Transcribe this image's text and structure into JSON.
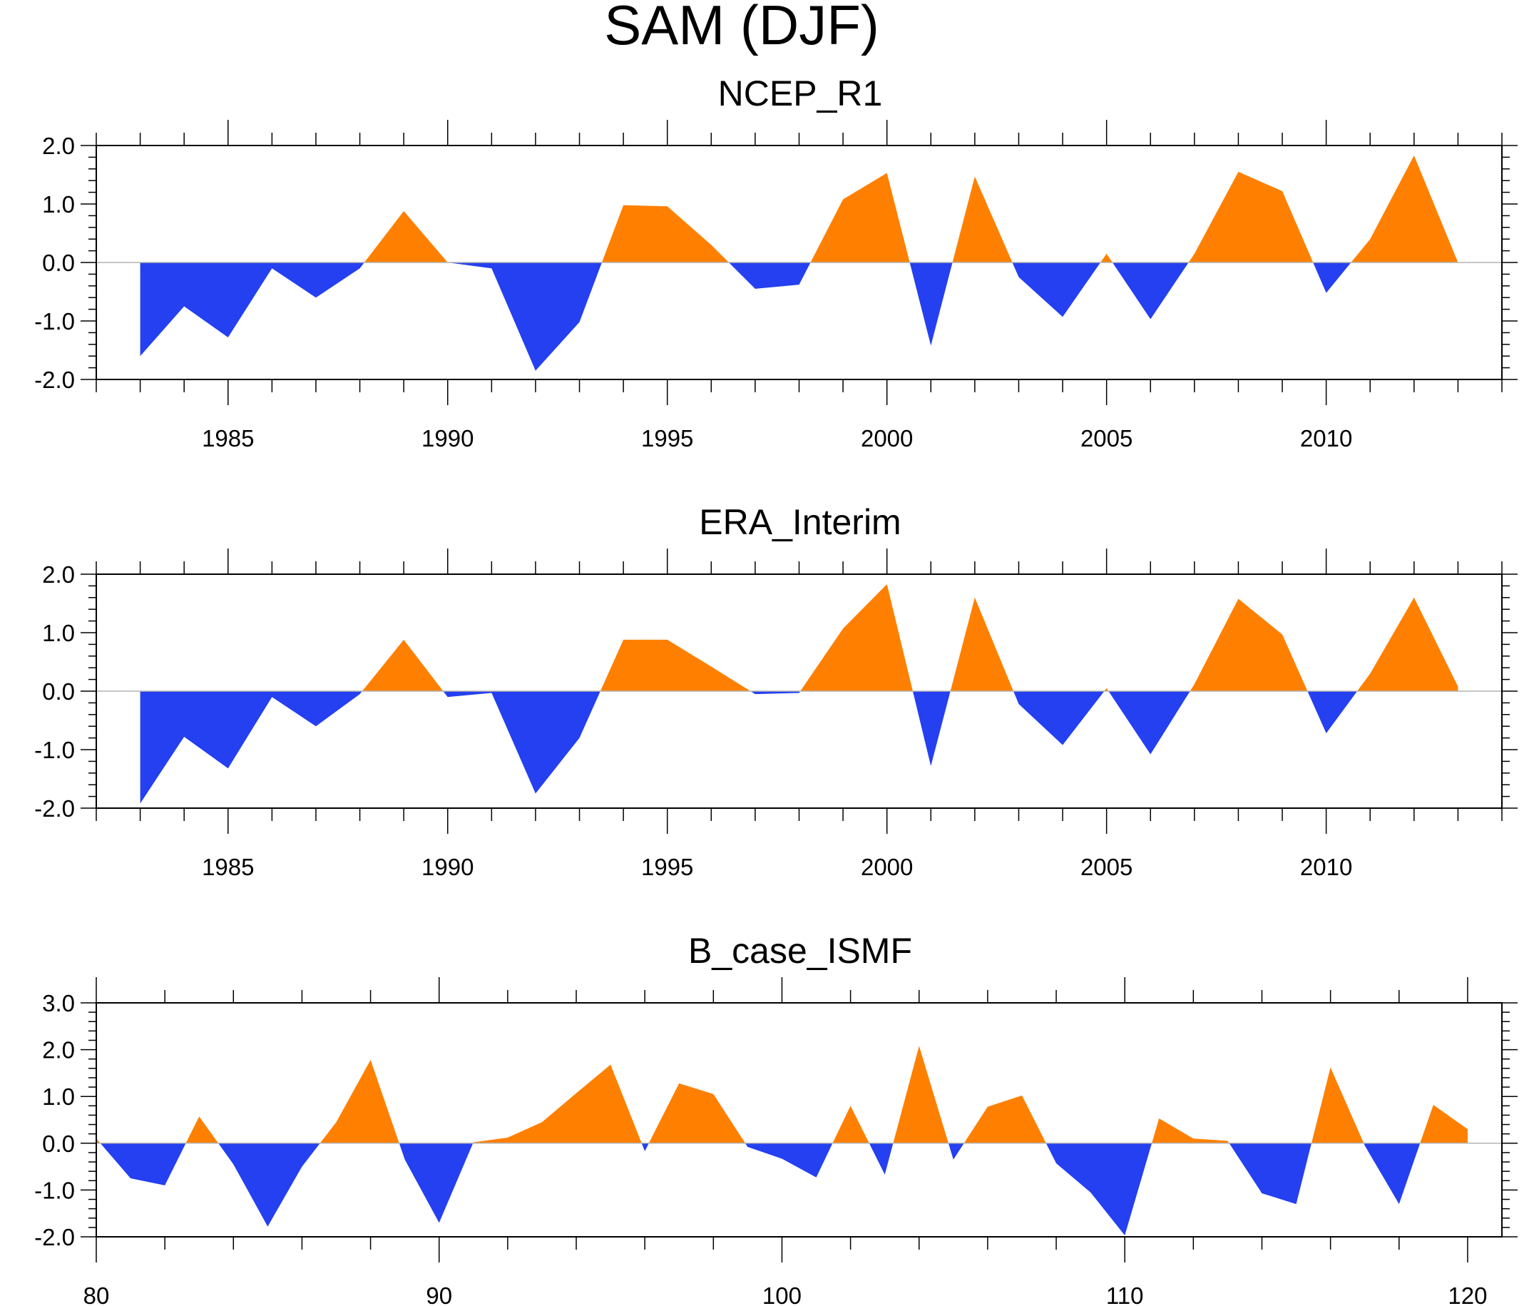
{
  "title": "SAM (DJF)",
  "colors": {
    "positive": "#ff8000",
    "negative": "#2440f0",
    "axis": "#000000",
    "zero_line": "#b4b4b4"
  },
  "chart_data": [
    {
      "type": "area",
      "title": "NCEP_R1",
      "xlabel": "",
      "ylabel": "",
      "xlim": [
        1982,
        2014
      ],
      "ylim": [
        -2.0,
        2.0
      ],
      "xticks": [
        1985,
        1990,
        1995,
        2000,
        2005,
        2010
      ],
      "xtick_labels": [
        "1985",
        "1990",
        "1995",
        "2000",
        "2005",
        "2010"
      ],
      "yticks": [
        -2.0,
        -1.0,
        0.0,
        1.0,
        2.0
      ],
      "ytick_labels": [
        "-2.0",
        "-1.0",
        "0.0",
        "1.0",
        "2.0"
      ],
      "grid": false,
      "baseline": 0,
      "x": [
        1983,
        1984,
        1985,
        1986,
        1987,
        1988,
        1989,
        1990,
        1991,
        1992,
        1993,
        1994,
        1995,
        1996,
        1997,
        1998,
        1999,
        2000,
        2001,
        2002,
        2003,
        2004,
        2005,
        2006,
        2007,
        2008,
        2009,
        2010,
        2011,
        2012,
        2013
      ],
      "values": [
        -1.6,
        -0.75,
        -1.28,
        -0.1,
        -0.6,
        -0.1,
        0.88,
        0.0,
        -0.1,
        -1.85,
        -1.02,
        0.98,
        0.96,
        0.3,
        -0.45,
        -0.38,
        1.08,
        1.53,
        -1.42,
        1.47,
        -0.25,
        -0.93,
        0.15,
        -0.97,
        0.15,
        1.55,
        1.22,
        -0.52,
        0.4,
        1.83,
        0.0
      ]
    },
    {
      "type": "area",
      "title": "ERA_Interim",
      "xlabel": "",
      "ylabel": "",
      "xlim": [
        1982,
        2014
      ],
      "ylim": [
        -2.0,
        2.0
      ],
      "xticks": [
        1985,
        1990,
        1995,
        2000,
        2005,
        2010
      ],
      "xtick_labels": [
        "1985",
        "1990",
        "1995",
        "2000",
        "2005",
        "2010"
      ],
      "yticks": [
        -2.0,
        -1.0,
        0.0,
        1.0,
        2.0
      ],
      "ytick_labels": [
        "-2.0",
        "-1.0",
        "0.0",
        "1.0",
        "2.0"
      ],
      "grid": false,
      "baseline": 0,
      "x": [
        1983,
        1984,
        1985,
        1986,
        1987,
        1988,
        1989,
        1990,
        1991,
        1992,
        1993,
        1994,
        1995,
        1996,
        1997,
        1998,
        1999,
        2000,
        2001,
        2002,
        2003,
        2004,
        2005,
        2006,
        2007,
        2008,
        2009,
        2010,
        2011,
        2012,
        2013
      ],
      "values": [
        -1.92,
        -0.78,
        -1.32,
        -0.1,
        -0.6,
        -0.05,
        0.88,
        -0.1,
        -0.03,
        -1.75,
        -0.8,
        0.88,
        0.88,
        0.42,
        -0.05,
        -0.03,
        1.07,
        1.83,
        -1.28,
        1.6,
        -0.22,
        -0.92,
        0.05,
        -1.08,
        0.12,
        1.58,
        0.97,
        -0.72,
        0.3,
        1.6,
        0.08
      ]
    },
    {
      "type": "area",
      "title": "B_case_ISMF",
      "xlabel": "",
      "ylabel": "",
      "xlim": [
        80,
        121
      ],
      "ylim": [
        -2.0,
        3.0
      ],
      "xticks": [
        80,
        90,
        100,
        110,
        120
      ],
      "xtick_labels": [
        "80",
        "90",
        "100",
        "110",
        "120"
      ],
      "yticks": [
        -2.0,
        -1.0,
        0.0,
        1.0,
        2.0,
        3.0
      ],
      "ytick_labels": [
        "-2.0",
        "-1.0",
        "0.0",
        "1.0",
        "2.0",
        "3.0"
      ],
      "grid": false,
      "baseline": 0,
      "x": [
        80,
        81,
        82,
        83,
        84,
        85,
        86,
        87,
        88,
        89,
        90,
        91,
        92,
        93,
        94,
        95,
        96,
        97,
        98,
        99,
        100,
        101,
        102,
        103,
        104,
        105,
        106,
        107,
        108,
        109,
        110,
        111,
        112,
        113,
        114,
        115,
        116,
        117,
        118,
        119,
        120
      ],
      "values": [
        0.1,
        -0.75,
        -0.9,
        0.57,
        -0.45,
        -1.78,
        -0.5,
        0.45,
        1.78,
        -0.35,
        -1.7,
        0.02,
        0.12,
        0.45,
        1.07,
        1.68,
        -0.17,
        1.28,
        1.05,
        -0.08,
        -0.33,
        -0.73,
        0.8,
        -0.67,
        2.08,
        -0.35,
        0.78,
        1.02,
        -0.43,
        -1.05,
        -1.97,
        0.53,
        0.1,
        0.05,
        -1.07,
        -1.3,
        1.62,
        -0.05,
        -1.3,
        0.82,
        0.3
      ]
    }
  ]
}
